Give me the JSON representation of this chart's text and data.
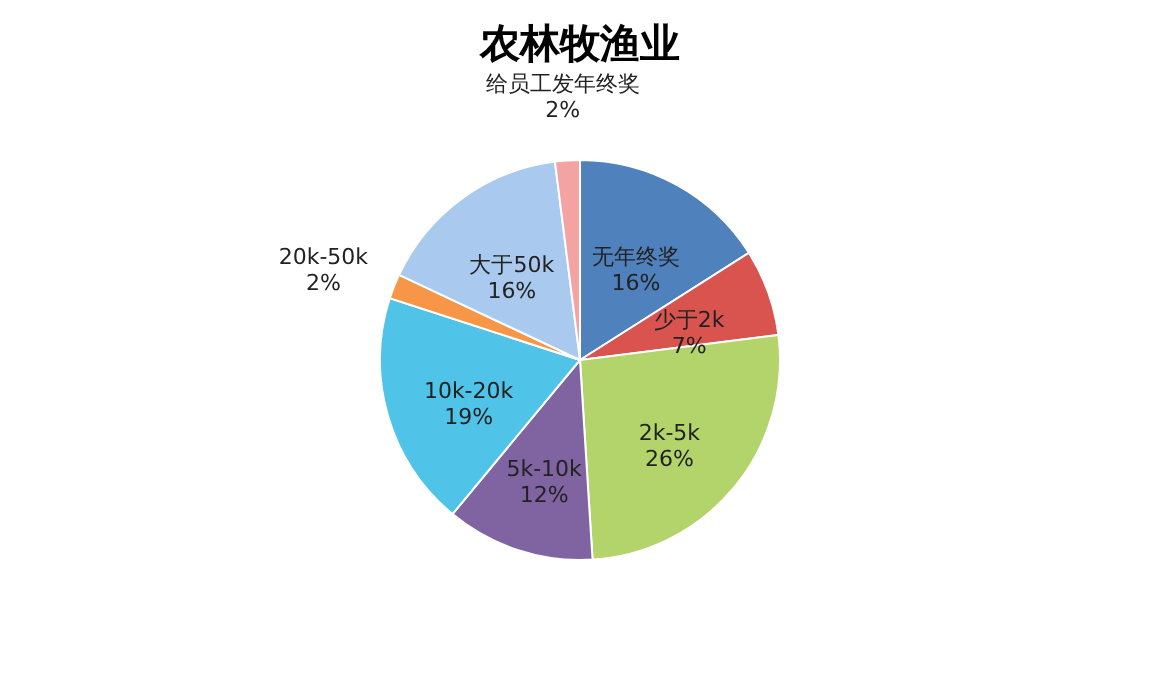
{
  "chart_data": {
    "type": "pie",
    "title": "农林牧渔业",
    "categories": [
      "无年终奖",
      "少于2k",
      "2k-5k",
      "5k-10k",
      "10k-20k",
      "20k-50k",
      "大于50k",
      "给员工发年终奖"
    ],
    "values": [
      16,
      7,
      26,
      12,
      19,
      2,
      16,
      2
    ],
    "value_labels": [
      "16%",
      "7%",
      "26%",
      "12%",
      "19%",
      "2%",
      "16%",
      "2%"
    ],
    "colors": [
      "#4f81bd",
      "#d9534f",
      "#b3d36b",
      "#8064a2",
      "#4fc3e8",
      "#f79646",
      "#a9c9ee",
      "#f4a3a3"
    ],
    "legend": false
  }
}
